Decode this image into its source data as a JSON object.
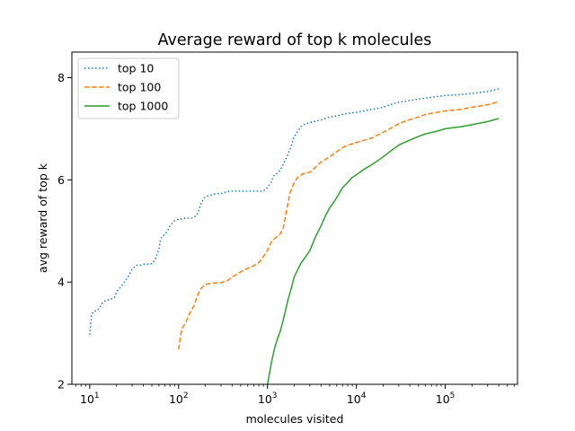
{
  "chart_data": {
    "type": "line",
    "title": "Average reward of top k molecules",
    "xlabel": "molecules visited",
    "ylabel": "avg reward of top k",
    "xscale": "log",
    "xlim": [
      6.3,
      650000
    ],
    "ylim": [
      2,
      8.5
    ],
    "yticks": [
      2,
      4,
      6,
      8
    ],
    "xticks": [
      {
        "base": "10",
        "exp": "1",
        "value": 10
      },
      {
        "base": "10",
        "exp": "2",
        "value": 100
      },
      {
        "base": "10",
        "exp": "3",
        "value": 1000
      },
      {
        "base": "10",
        "exp": "4",
        "value": 10000
      },
      {
        "base": "10",
        "exp": "5",
        "value": 100000
      }
    ],
    "grid": false,
    "legend_position": "top-left",
    "series": [
      {
        "name": "top 10",
        "color": "#1f77b4",
        "style": "dotted",
        "x": [
          10,
          10.5,
          11,
          12,
          13,
          14,
          15,
          17,
          19,
          20,
          21,
          23,
          25,
          27,
          30,
          32,
          34,
          37,
          40,
          45,
          50,
          55,
          60,
          63,
          66,
          70,
          75,
          80,
          85,
          90,
          95,
          100,
          110,
          120,
          140,
          160,
          180,
          195,
          200,
          210,
          230,
          250,
          280,
          300,
          350,
          400,
          500,
          600,
          700,
          800,
          900,
          1000,
          1100,
          1150,
          1200,
          1300,
          1400,
          1600,
          1800,
          2000,
          2200,
          2400,
          2700,
          3000,
          3500,
          4000,
          5000,
          6000,
          7000,
          8000,
          10000,
          15000,
          20000,
          25000,
          30000,
          40000,
          50000,
          60000,
          80000,
          100000,
          150000,
          200000,
          300000,
          400000
        ],
        "y": [
          2.97,
          3.35,
          3.43,
          3.44,
          3.5,
          3.6,
          3.64,
          3.66,
          3.7,
          3.8,
          3.85,
          3.93,
          4.02,
          4.1,
          4.25,
          4.3,
          4.33,
          4.33,
          4.35,
          4.35,
          4.36,
          4.45,
          4.65,
          4.85,
          4.9,
          4.93,
          5.0,
          5.1,
          5.15,
          5.2,
          5.22,
          5.22,
          5.24,
          5.25,
          5.25,
          5.3,
          5.55,
          5.65,
          5.66,
          5.68,
          5.7,
          5.72,
          5.73,
          5.73,
          5.77,
          5.78,
          5.78,
          5.78,
          5.78,
          5.78,
          5.78,
          5.85,
          5.95,
          6.05,
          6.1,
          6.13,
          6.2,
          6.4,
          6.6,
          6.85,
          6.95,
          7.05,
          7.1,
          7.12,
          7.15,
          7.17,
          7.23,
          7.25,
          7.28,
          7.3,
          7.32,
          7.38,
          7.42,
          7.48,
          7.52,
          7.55,
          7.58,
          7.6,
          7.63,
          7.65,
          7.67,
          7.69,
          7.73,
          7.78
        ]
      },
      {
        "name": "top 100",
        "color": "#ff7f0e",
        "style": "dashed",
        "x": [
          100,
          105,
          110,
          120,
          130,
          140,
          150,
          160,
          170,
          180,
          200,
          220,
          250,
          300,
          350,
          400,
          450,
          500,
          600,
          700,
          800,
          900,
          1000,
          1100,
          1200,
          1300,
          1400,
          1500,
          1600,
          1700,
          1800,
          2000,
          2200,
          2500,
          3000,
          3500,
          4000,
          5000,
          6000,
          7000,
          8000,
          10000,
          15000,
          20000,
          25000,
          30000,
          40000,
          50000,
          60000,
          80000,
          100000,
          150000,
          200000,
          300000,
          400000
        ],
        "y": [
          2.68,
          2.95,
          3.1,
          3.2,
          3.35,
          3.45,
          3.55,
          3.7,
          3.8,
          3.88,
          3.95,
          3.97,
          3.98,
          3.99,
          4.02,
          4.1,
          4.15,
          4.2,
          4.27,
          4.32,
          4.38,
          4.5,
          4.62,
          4.78,
          4.85,
          4.9,
          4.95,
          5.05,
          5.3,
          5.55,
          5.75,
          5.95,
          6.05,
          6.12,
          6.15,
          6.25,
          6.35,
          6.45,
          6.55,
          6.63,
          6.68,
          6.73,
          6.82,
          6.93,
          7.02,
          7.1,
          7.18,
          7.23,
          7.28,
          7.32,
          7.35,
          7.38,
          7.42,
          7.47,
          7.53
        ]
      },
      {
        "name": "top 1000",
        "color": "#2ca02c",
        "style": "solid",
        "x": [
          1000,
          1050,
          1100,
          1200,
          1300,
          1400,
          1500,
          1600,
          1700,
          1800,
          1900,
          2000,
          2200,
          2400,
          2700,
          3000,
          3500,
          4000,
          4500,
          5000,
          5500,
          6000,
          7000,
          8000,
          9000,
          10000,
          12000,
          15000,
          20000,
          25000,
          30000,
          40000,
          50000,
          60000,
          80000,
          100000,
          150000,
          200000,
          300000,
          400000
        ],
        "y": [
          2.0,
          2.2,
          2.4,
          2.7,
          2.9,
          3.05,
          3.25,
          3.45,
          3.65,
          3.8,
          3.95,
          4.1,
          4.25,
          4.38,
          4.5,
          4.62,
          4.9,
          5.1,
          5.3,
          5.45,
          5.55,
          5.65,
          5.85,
          5.95,
          6.05,
          6.1,
          6.2,
          6.3,
          6.45,
          6.58,
          6.68,
          6.78,
          6.85,
          6.9,
          6.95,
          7.0,
          7.04,
          7.08,
          7.14,
          7.2
        ]
      }
    ]
  }
}
